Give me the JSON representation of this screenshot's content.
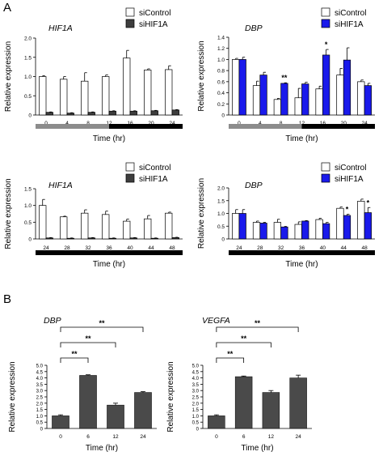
{
  "panel_labels": [
    "A",
    "B"
  ],
  "colors": {
    "control": "#ffffff",
    "hif_knockdown": "#3d3d3d",
    "dbp_knockdown": "#1a1aeb",
    "panel_b_bar": "#4a4a4a",
    "axis": "#000000",
    "light_bar": "#8c8c8c",
    "dark_bar": "#000000"
  },
  "chart_data": [
    {
      "id": "A1",
      "type": "bar",
      "gene": "HIF1A",
      "ylabel": "Relative expression",
      "xlabel": "Time (hr)",
      "categories": [
        "0",
        "4",
        "8",
        "12",
        "16",
        "20",
        "24"
      ],
      "ylim": [
        0,
        2.0
      ],
      "yticks": [
        "0",
        "0.5",
        "1.0",
        "1.5",
        "2.0"
      ],
      "legend": [
        "siControl",
        "siHIF1A"
      ],
      "series": [
        {
          "name": "siControl",
          "values": [
            1.0,
            0.93,
            0.88,
            1.0,
            1.48,
            1.17,
            1.18
          ],
          "errors": [
            0.02,
            0.07,
            0.22,
            0.04,
            0.2,
            0.03,
            0.1
          ]
        },
        {
          "name": "siHIF1A",
          "values": [
            0.07,
            0.05,
            0.07,
            0.1,
            0.1,
            0.11,
            0.13
          ],
          "errors": [
            0.01,
            0.01,
            0.01,
            0.01,
            0.01,
            0.01,
            0.01
          ]
        }
      ],
      "light_dark_bar": "light-then-dark",
      "annotations": []
    },
    {
      "id": "A2",
      "type": "bar",
      "gene": "DBP",
      "ylabel": "Relative expression",
      "xlabel": "Time (hr)",
      "categories": [
        "0",
        "4",
        "8",
        "12",
        "16",
        "20",
        "24"
      ],
      "ylim": [
        0,
        1.4
      ],
      "yticks": [
        "0",
        "0.2",
        "0.4",
        "0.6",
        "0.8",
        "1.0",
        "1.2",
        "1.4"
      ],
      "legend": [
        "siControl",
        "siHIF1A"
      ],
      "series": [
        {
          "name": "siControl",
          "values": [
            1.0,
            0.53,
            0.28,
            0.31,
            0.47,
            0.72,
            0.6
          ],
          "errors": [
            0.02,
            0.08,
            0.02,
            0.17,
            0.05,
            0.12,
            0.03
          ]
        },
        {
          "name": "siHIF1A",
          "values": [
            1.0,
            0.72,
            0.57,
            0.56,
            1.08,
            0.99,
            0.53
          ],
          "errors": [
            0.04,
            0.05,
            0.01,
            0.03,
            0.1,
            0.22,
            0.04
          ]
        }
      ],
      "light_dark_bar": "light-then-dark",
      "annotations": [
        {
          "category": "8",
          "text": "**"
        },
        {
          "category": "16",
          "text": "*"
        }
      ]
    },
    {
      "id": "A3",
      "type": "bar",
      "gene": "HIF1A",
      "ylabel": "Relative expression",
      "xlabel": "Time (hr)",
      "categories": [
        "24",
        "28",
        "32",
        "36",
        "40",
        "44",
        "48"
      ],
      "ylim": [
        0,
        1.5
      ],
      "yticks": [
        "0",
        "0.5",
        "1.0",
        "1.5"
      ],
      "legend": [
        "siControl",
        "siHIF1A"
      ],
      "series": [
        {
          "name": "siControl",
          "values": [
            1.0,
            0.66,
            0.77,
            0.73,
            0.53,
            0.6,
            0.77
          ],
          "errors": [
            0.18,
            0.02,
            0.1,
            0.1,
            0.06,
            0.1,
            0.03
          ]
        },
        {
          "name": "siHIF1A",
          "values": [
            0.03,
            0.02,
            0.03,
            0.02,
            0.03,
            0.02,
            0.04
          ],
          "errors": [
            0.01,
            0.01,
            0.01,
            0.01,
            0.01,
            0.01,
            0.01
          ]
        }
      ],
      "light_dark_bar": "dark",
      "annotations": []
    },
    {
      "id": "A4",
      "type": "bar",
      "gene": "DBP",
      "ylabel": "Relative expression",
      "xlabel": "Time (hr)",
      "categories": [
        "24",
        "28",
        "32",
        "36",
        "40",
        "44",
        "48"
      ],
      "ylim": [
        0,
        2.0
      ],
      "yticks": [
        "0",
        "0.5",
        "1.0",
        "1.5",
        "2.0"
      ],
      "legend": [
        "siControl",
        "siHIF1A"
      ],
      "series": [
        {
          "name": "siControl",
          "values": [
            1.0,
            0.65,
            0.65,
            0.57,
            0.76,
            1.2,
            1.48
          ],
          "errors": [
            0.15,
            0.05,
            0.12,
            0.1,
            0.05,
            0.05,
            0.08
          ]
        },
        {
          "name": "siHIF1A",
          "values": [
            1.0,
            0.62,
            0.47,
            0.7,
            0.6,
            0.92,
            1.03
          ],
          "errors": [
            0.15,
            0.03,
            0.02,
            0.02,
            0.05,
            0.05,
            0.2
          ]
        }
      ],
      "light_dark_bar": "dark",
      "annotations": [
        {
          "category": "44",
          "text": "*"
        },
        {
          "category": "48",
          "text": "*"
        }
      ]
    },
    {
      "id": "B1",
      "type": "bar",
      "gene": "DBP",
      "ylabel": "Relative expression",
      "xlabel": "Time (hr)",
      "categories": [
        "0",
        "6",
        "12",
        "24"
      ],
      "ylim": [
        0,
        5.0
      ],
      "yticks": [
        "0",
        "0.5",
        "1.0",
        "1.5",
        "2.0",
        "2.5",
        "3.0",
        "3.5",
        "4.0",
        "4.5",
        "5.0"
      ],
      "series": [
        {
          "values": [
            1.0,
            4.2,
            1.85,
            2.85
          ],
          "errors": [
            0.08,
            0.05,
            0.15,
            0.07
          ]
        }
      ],
      "comparisons": [
        {
          "from": "0",
          "to": "6",
          "text": "**"
        },
        {
          "from": "0",
          "to": "12",
          "text": "**"
        },
        {
          "from": "0",
          "to": "24",
          "text": "**"
        }
      ]
    },
    {
      "id": "B2",
      "type": "bar",
      "gene": "VEGFA",
      "ylabel": "Relative expression",
      "xlabel": "Time (hr)",
      "categories": [
        "0",
        "6",
        "12",
        "24"
      ],
      "ylim": [
        0,
        5.0
      ],
      "yticks": [
        "0",
        "0.5",
        "1.0",
        "1.5",
        "2.0",
        "2.5",
        "3.0",
        "3.5",
        "4.0",
        "4.5",
        "5.0"
      ],
      "series": [
        {
          "values": [
            1.0,
            4.1,
            2.85,
            4.0
          ],
          "errors": [
            0.08,
            0.05,
            0.15,
            0.22
          ]
        }
      ],
      "comparisons": [
        {
          "from": "0",
          "to": "6",
          "text": "**"
        },
        {
          "from": "0",
          "to": "12",
          "text": "**"
        },
        {
          "from": "0",
          "to": "24",
          "text": "**"
        }
      ]
    }
  ]
}
